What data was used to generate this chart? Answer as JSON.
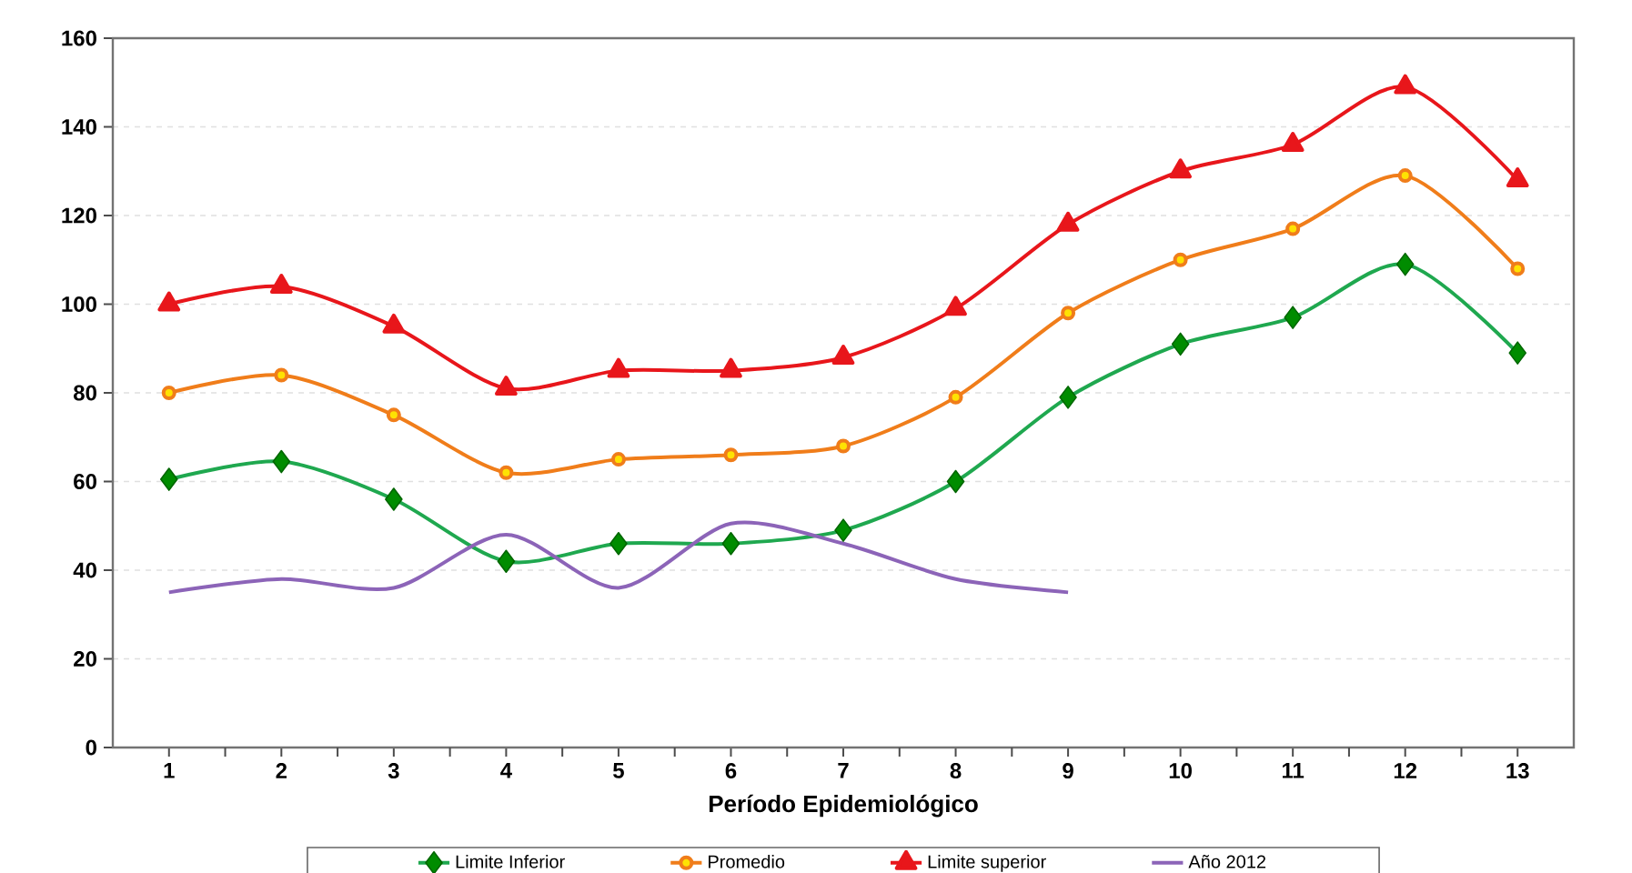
{
  "chart_data": {
    "type": "line",
    "xlabel": "Período Epidemiológico",
    "categories": [
      "1",
      "2",
      "3",
      "4",
      "5",
      "6",
      "7",
      "8",
      "9",
      "10",
      "11",
      "12",
      "13"
    ],
    "series": [
      {
        "name": "Limite Inferior",
        "color": "#1fa84f",
        "marker": "diamond",
        "values": [
          60.5,
          64.5,
          56,
          42,
          46,
          46,
          49,
          60,
          79,
          91,
          97,
          109,
          89
        ]
      },
      {
        "name": "Promedio",
        "color": "#f07d1a",
        "marker": "circle",
        "values": [
          80,
          84,
          75,
          62,
          65,
          66,
          68,
          79,
          98,
          110,
          117,
          129,
          108
        ]
      },
      {
        "name": "Limite superior",
        "color": "#e8161b",
        "marker": "triangle",
        "values": [
          100,
          104,
          95,
          81,
          85,
          85,
          88,
          99,
          118,
          130,
          136,
          149,
          128
        ]
      },
      {
        "name": "Año 2012",
        "color": "#8c64b8",
        "marker": "none",
        "values": [
          35,
          38,
          36,
          48,
          36,
          50.5,
          46,
          38,
          35,
          null,
          null,
          null,
          null
        ]
      }
    ],
    "ylim": [
      0,
      160
    ],
    "yticks": [
      0,
      20,
      40,
      60,
      80,
      100,
      120,
      140,
      160
    ],
    "grid": "y",
    "legend": "bottom",
    "line_style": "solid"
  }
}
